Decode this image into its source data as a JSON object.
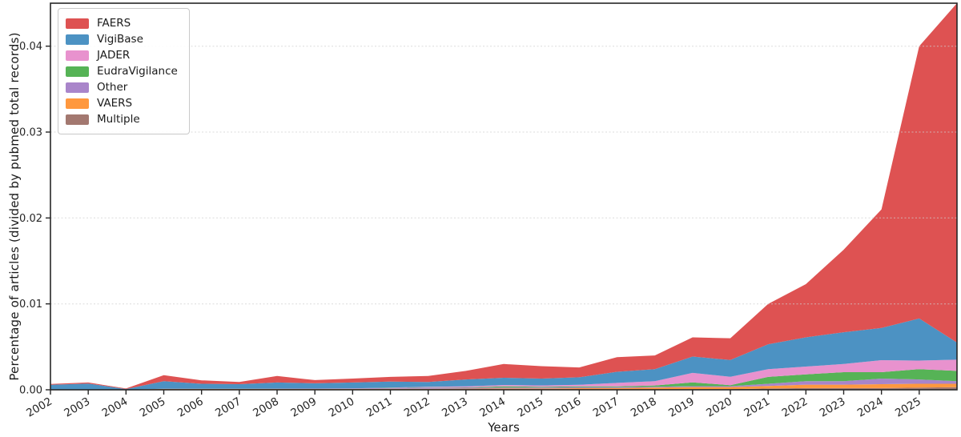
{
  "figure": {
    "xlabel": "Years",
    "ylabel": "Percentage of articles (divided by pubmed total records)"
  },
  "legend": {
    "position": "upper left",
    "items": [
      {
        "label": "FAERS",
        "color": "#DE5252"
      },
      {
        "label": "VigiBase",
        "color": "#4C92C3"
      },
      {
        "label": "JADER",
        "color": "#E892CE"
      },
      {
        "label": "EudraVigilance",
        "color": "#56B356"
      },
      {
        "label": "Other",
        "color": "#A985CA"
      },
      {
        "label": "VAERS",
        "color": "#FF983E"
      },
      {
        "label": "Multiple",
        "color": "#A37870"
      }
    ]
  },
  "axes": {
    "spine_color": "#262626",
    "tick_color": "#262626",
    "grid_color": "#cfcfcf",
    "yticks": {
      "labels": [
        "0.00",
        "0.01",
        "0.02",
        "0.03",
        "0.04"
      ],
      "values": [
        0,
        0.01,
        0.02,
        0.03,
        0.04
      ]
    },
    "xticks": [
      2002,
      2003,
      2004,
      2005,
      2006,
      2007,
      2008,
      2009,
      2010,
      2011,
      2012,
      2013,
      2014,
      2015,
      2016,
      2017,
      2018,
      2019,
      2020,
      2021,
      2022,
      2023,
      2024,
      2025
    ]
  },
  "chart_data": {
    "type": "area",
    "stacked": true,
    "title": "",
    "xlabel": "Years",
    "ylabel": "Percentage of articles (divided by pubmed total records)",
    "legend_position": "upper left",
    "grid": "horizontal dashed at y ticks",
    "xlim": [
      2002,
      2026
    ],
    "ylim": [
      0,
      0.045
    ],
    "x": [
      2002,
      2003,
      2004,
      2005,
      2006,
      2007,
      2008,
      2009,
      2010,
      2011,
      2012,
      2013,
      2014,
      2015,
      2016,
      2017,
      2018,
      2019,
      2020,
      2021,
      2022,
      2023,
      2024,
      2025,
      2026
    ],
    "stack_order": "bottom to top: Multiple, VAERS, Other, EudraVigilance, JADER, VigiBase, FAERS",
    "series": [
      {
        "name": "Multiple",
        "color": "#A37870",
        "values": [
          0,
          0,
          0,
          0,
          0,
          0,
          0,
          0,
          0,
          1e-05,
          2e-05,
          3e-05,
          3e-05,
          3e-05,
          4e-05,
          5e-05,
          5e-05,
          7e-05,
          7e-05,
          0.00015,
          0.0002,
          0.0002,
          0.0002,
          0.00025,
          0.0003
        ]
      },
      {
        "name": "VAERS",
        "color": "#FF983E",
        "values": [
          3e-05,
          3e-05,
          2e-05,
          0.0001,
          0.0001,
          0.0001,
          0.0001,
          0.0001,
          0.0001,
          0.0001,
          0.0001,
          0.0001,
          0.00012,
          0.00012,
          0.00015,
          0.00015,
          0.0002,
          0.00025,
          0.00025,
          0.0003,
          0.0004,
          0.0004,
          0.00045,
          0.00045,
          0.0004
        ]
      },
      {
        "name": "Other",
        "color": "#A985CA",
        "values": [
          0,
          0,
          0,
          2e-05,
          2e-05,
          2e-05,
          3e-05,
          4e-05,
          6e-05,
          0.0001,
          0.00015,
          0.0001,
          0.0001,
          0.0001,
          0.0001,
          0.0001,
          0.0001,
          0.0001,
          0.0001,
          0.00025,
          0.0004,
          0.0004,
          0.00065,
          0.0005,
          0.0003
        ]
      },
      {
        "name": "EudraVigilance",
        "color": "#56B356",
        "values": [
          0,
          0,
          0,
          0,
          0,
          0,
          0,
          0,
          0,
          3e-05,
          3e-05,
          5e-05,
          0.00015,
          0.0001,
          0.0001,
          0.0001,
          0.00015,
          0.00045,
          0.00012,
          0.0008,
          0.0008,
          0.00105,
          0.00075,
          0.0012,
          0.0012
        ]
      },
      {
        "name": "JADER",
        "color": "#E892CE",
        "values": [
          0,
          0,
          0,
          0,
          0,
          0,
          0,
          0,
          0,
          1e-05,
          5e-05,
          0.00012,
          0.00015,
          0.00015,
          0.0002,
          0.0004,
          0.0005,
          0.0011,
          0.00098,
          0.0009,
          0.0009,
          0.00095,
          0.0014,
          0.001,
          0.0013
        ]
      },
      {
        "name": "VigiBase",
        "color": "#4C92C3",
        "values": [
          0.00055,
          0.0007,
          6e-05,
          0.00088,
          0.00058,
          0.00053,
          0.00072,
          0.00061,
          0.00069,
          0.0007,
          0.00055,
          0.0008,
          0.00085,
          0.0008,
          0.00086,
          0.0013,
          0.0014,
          0.0019,
          0.00195,
          0.0029,
          0.0034,
          0.0037,
          0.00375,
          0.0049,
          0.002
        ]
      },
      {
        "name": "FAERS",
        "color": "#DE5252",
        "values": [
          9e-05,
          0.00012,
          7e-05,
          0.0007,
          0.0004,
          0.00025,
          0.00075,
          0.00038,
          0.00045,
          0.00055,
          0.0007,
          0.001,
          0.0016,
          0.00145,
          0.00115,
          0.0017,
          0.0016,
          0.00223,
          0.00253,
          0.0047,
          0.0062,
          0.0096,
          0.0138,
          0.0317,
          0.0395
        ]
      }
    ]
  }
}
